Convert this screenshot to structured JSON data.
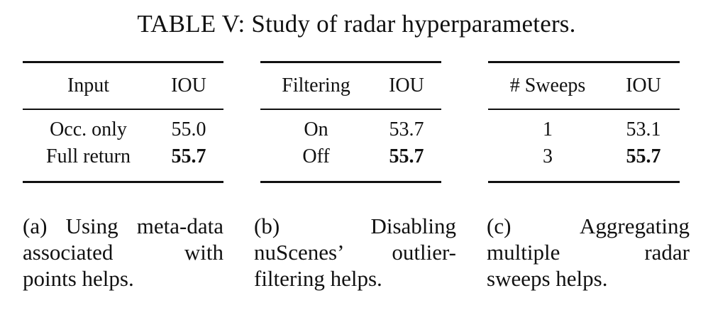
{
  "title": "TABLE V: Study of radar hyperparameters.",
  "tables": [
    {
      "headers": [
        "Input",
        "IOU"
      ],
      "rows": [
        [
          "Occ. only",
          "55.0"
        ],
        [
          "Full return",
          "55.7"
        ]
      ],
      "caption_lines": [
        "(a) Using meta-data",
        "associated with",
        "points helps."
      ]
    },
    {
      "headers": [
        "Filtering",
        "IOU"
      ],
      "rows": [
        [
          "On",
          "53.7"
        ],
        [
          "Off",
          "55.7"
        ]
      ],
      "caption_lines": [
        "(b) Disabling",
        "nuScenes’ outlier-",
        "filtering helps."
      ]
    },
    {
      "headers": [
        "# Sweeps",
        "IOU"
      ],
      "rows": [
        [
          "1",
          "53.1"
        ],
        [
          "3",
          "55.7"
        ]
      ],
      "caption_lines": [
        "(c) Aggregating",
        "multiple radar",
        "sweeps helps."
      ]
    }
  ]
}
